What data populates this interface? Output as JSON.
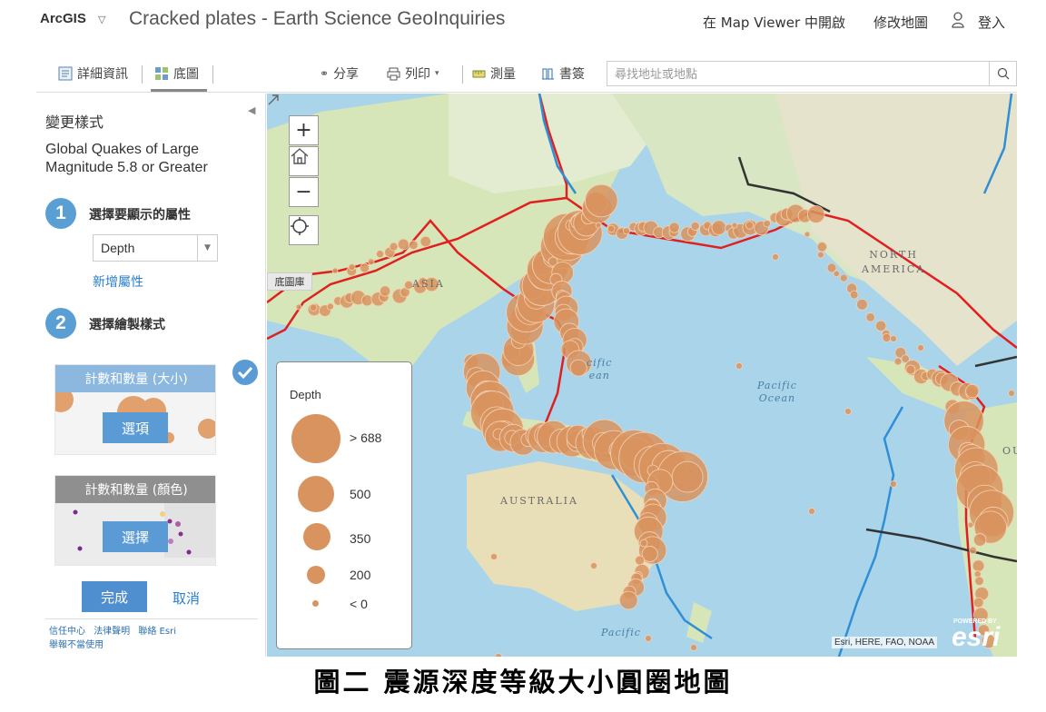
{
  "header": {
    "brand": "ArcGIS",
    "brand_caret": "▽",
    "title": "Cracked plates - Earth Science GeoInquiries",
    "open_in_viewer": "在 Map Viewer 中開啟",
    "modify_map": "修改地圖",
    "sign_in": "登入"
  },
  "toolbar": {
    "details": "詳細資訊",
    "basemap": "底圖",
    "share": "分享",
    "print": "列印",
    "measure": "測量",
    "bookmarks": "書簽",
    "search_placeholder": "尋找地址或地點"
  },
  "panel": {
    "title": "變更樣式",
    "layer_name": "Global Quakes of Large Magnitude 5.8 or Greater",
    "step1_number": "1",
    "step1_label": "選擇要顯示的屬性",
    "attribute_value": "Depth",
    "add_attribute": "新增屬性",
    "step2_number": "2",
    "step2_label": "選擇繪製樣式",
    "style_size_title": "計數和數量 (大小)",
    "style_size_button": "選項",
    "style_color_title": "計數和數量 (顏色)",
    "style_color_button": "選擇",
    "done": "完成",
    "cancel": "取消",
    "footer": {
      "trust": "信任中心",
      "legal": "法律聲明",
      "contact": "聯絡 Esri",
      "report": "舉報不當使用"
    }
  },
  "map": {
    "basemap_tooltip": "底圖庫",
    "labels": {
      "asia": "ASIA",
      "north_america": "NORTH\nAMERICA",
      "australia": "AUSTRALIA",
      "pacific_ocean": "Pacific\nOcean",
      "pacific_ocean_partial": "cific\nean",
      "pacific_bottom": "Pacific",
      "south_america_partial": "OU"
    },
    "attribution": "Esri, HERE, FAO, NOAA",
    "esri_powered": "POWERED BY",
    "esri_logo": "esri",
    "symbol_color": "#d8935f",
    "plate_boundary_colors": [
      "#e02020",
      "#2f8fd6",
      "#333333"
    ]
  },
  "legend": {
    "title": "Depth",
    "items": [
      {
        "label": "> 688"
      },
      {
        "label": "500"
      },
      {
        "label": "350"
      },
      {
        "label": "200"
      },
      {
        "label": "< 0"
      }
    ]
  },
  "caption": "圖二 震源深度等級大小圓圈地圖"
}
